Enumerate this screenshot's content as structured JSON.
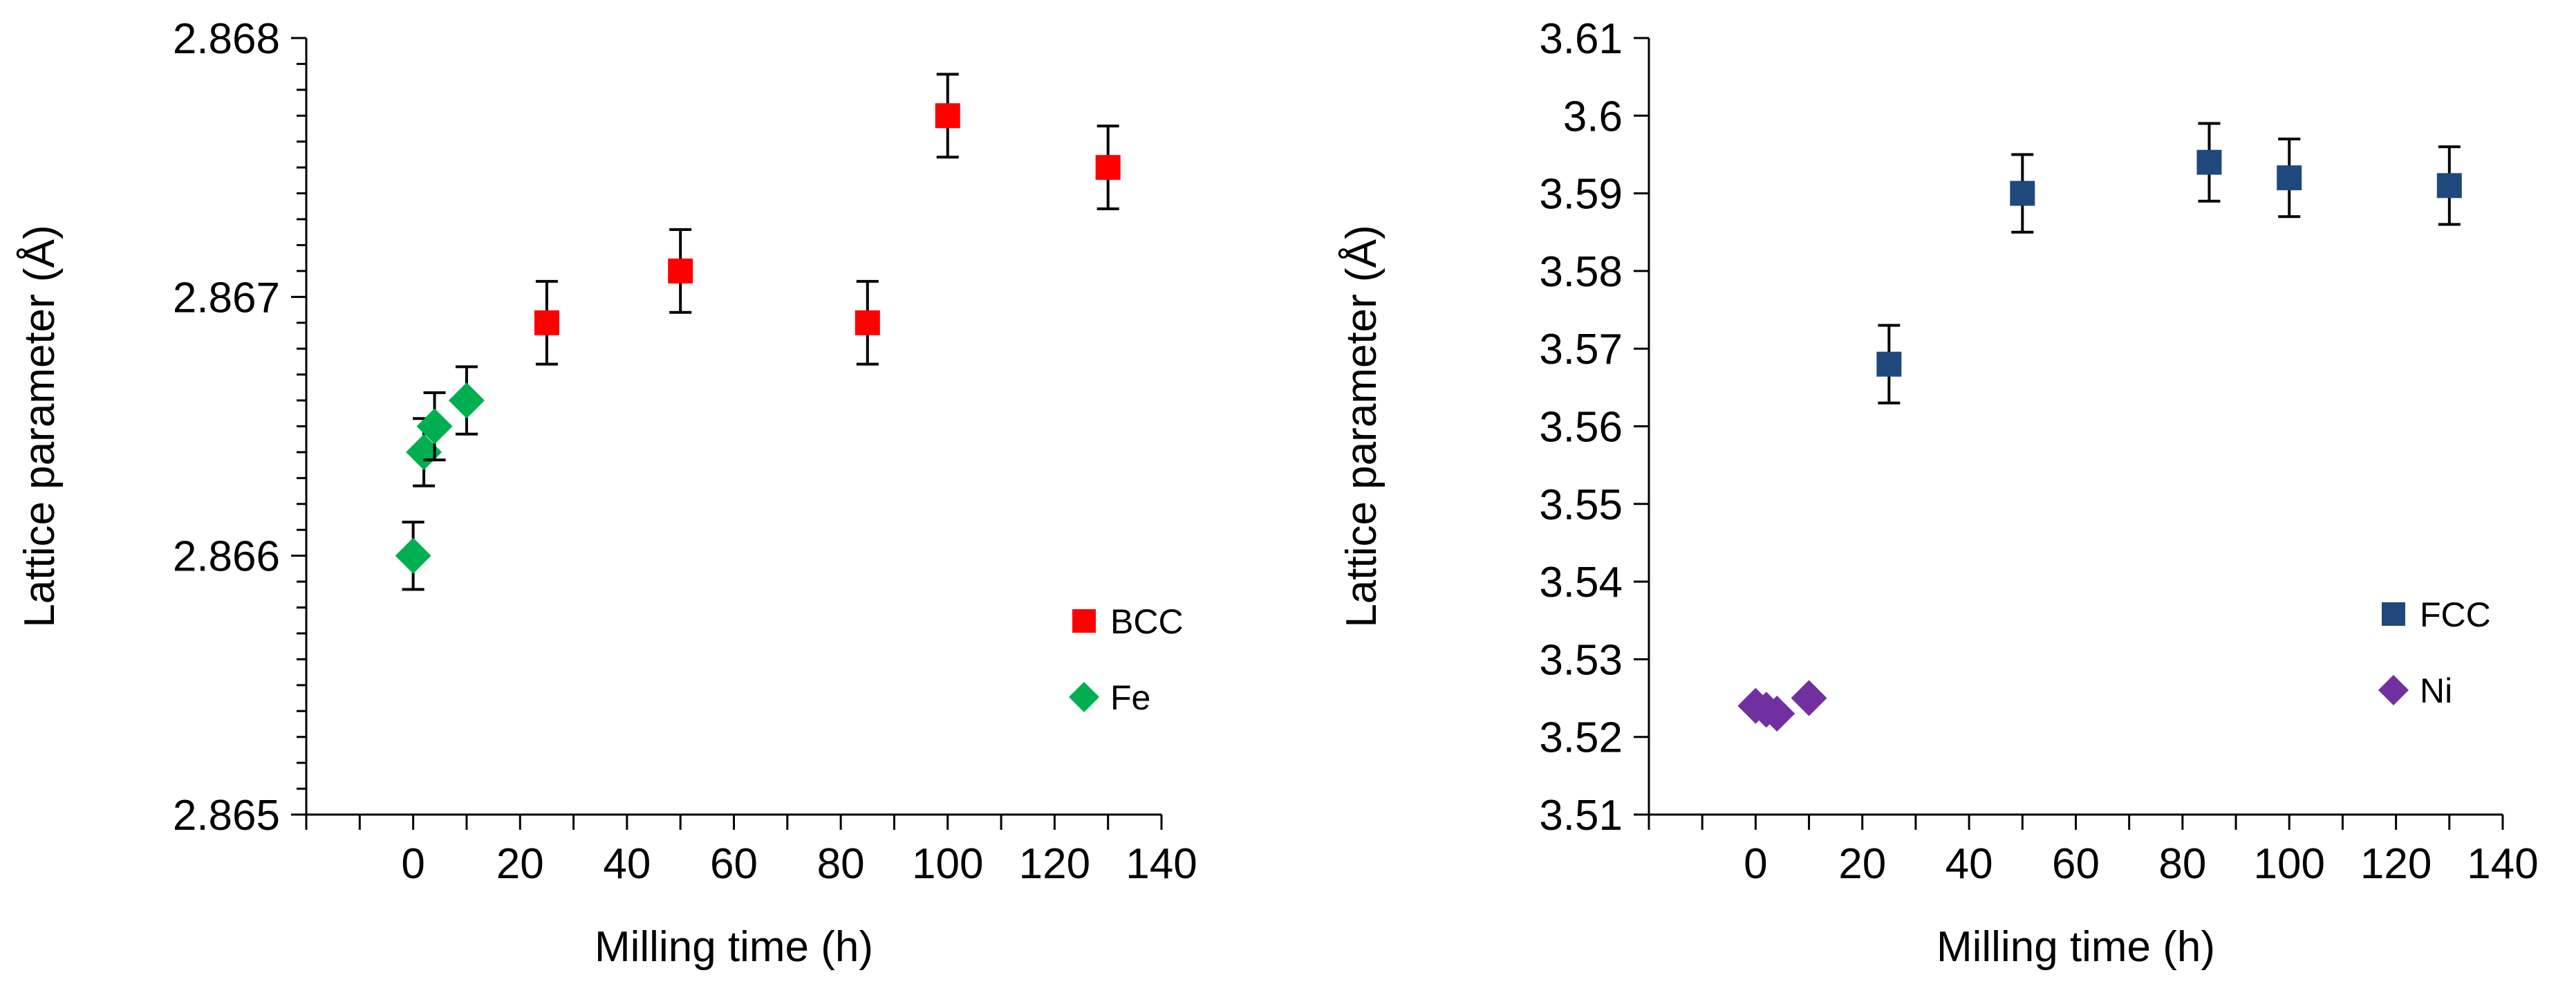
{
  "chart_data": [
    {
      "type": "scatter",
      "xlabel": "Milling time (h)",
      "ylabel": "Lattice  parameter (Å)",
      "xlim": [
        -20,
        140
      ],
      "ylim": [
        2.865,
        2.868
      ],
      "x_tick_labels": [
        "0",
        "20",
        "40",
        "60",
        "80",
        "100",
        "120",
        "140"
      ],
      "x_ticks": [
        0,
        20,
        40,
        60,
        80,
        100,
        120,
        140
      ],
      "x_minor_ticks": [
        -20,
        -10,
        10,
        30,
        50,
        70,
        90,
        110,
        130
      ],
      "y_major_ticks": [
        2.865,
        2.866,
        2.867,
        2.868
      ],
      "y_tick_labels": [
        "2.865",
        "2.866",
        "2.867",
        "2.868"
      ],
      "y_minor_step": 0.0001,
      "grid": false,
      "legend_position": "bottom-right",
      "series": [
        {
          "name": "BCC",
          "marker": "square",
          "color": "#ff0000",
          "x": [
            25,
            50,
            85,
            100,
            130
          ],
          "y": [
            2.8669,
            2.8671,
            2.8669,
            2.8677,
            2.8675
          ],
          "error": 0.00016
        },
        {
          "name": "Fe",
          "marker": "diamond",
          "color": "#00b050",
          "x": [
            0,
            2,
            4,
            10
          ],
          "y": [
            2.866,
            2.8664,
            2.8665,
            2.8666
          ],
          "error": 0.00013
        }
      ]
    },
    {
      "type": "scatter",
      "xlabel": "Milling time (h)",
      "ylabel": "Lattice  parameter (Å)",
      "xlim": [
        -20,
        140
      ],
      "ylim": [
        3.51,
        3.61
      ],
      "x_tick_labels": [
        "0",
        "20",
        "40",
        "60",
        "80",
        "100",
        "120",
        "140"
      ],
      "x_ticks": [
        0,
        20,
        40,
        60,
        80,
        100,
        120,
        140
      ],
      "x_minor_ticks": [
        -20,
        -10,
        10,
        30,
        50,
        70,
        90,
        110,
        130
      ],
      "y_major_ticks": [
        3.51,
        3.52,
        3.53,
        3.54,
        3.55,
        3.56,
        3.57,
        3.58,
        3.59,
        3.6,
        3.61
      ],
      "y_tick_labels": [
        "3.51",
        "3.52",
        "3.53",
        "3.54",
        "3.55",
        "3.56",
        "3.57",
        "3.58",
        "3.59",
        "3.6",
        "3.61"
      ],
      "y_minor_step": 0,
      "grid": false,
      "legend_position": "bottom-right",
      "series": [
        {
          "name": "FCC",
          "marker": "square",
          "color": "#1f497d",
          "x": [
            25,
            50,
            85,
            100,
            130
          ],
          "y": [
            3.568,
            3.59,
            3.594,
            3.592,
            3.591
          ],
          "error": 0.005
        },
        {
          "name": "Ni",
          "marker": "diamond",
          "color": "#7030a0",
          "x": [
            0,
            2,
            4,
            10
          ],
          "y": [
            3.524,
            3.5235,
            3.523,
            3.525
          ],
          "error": 0
        }
      ]
    }
  ]
}
